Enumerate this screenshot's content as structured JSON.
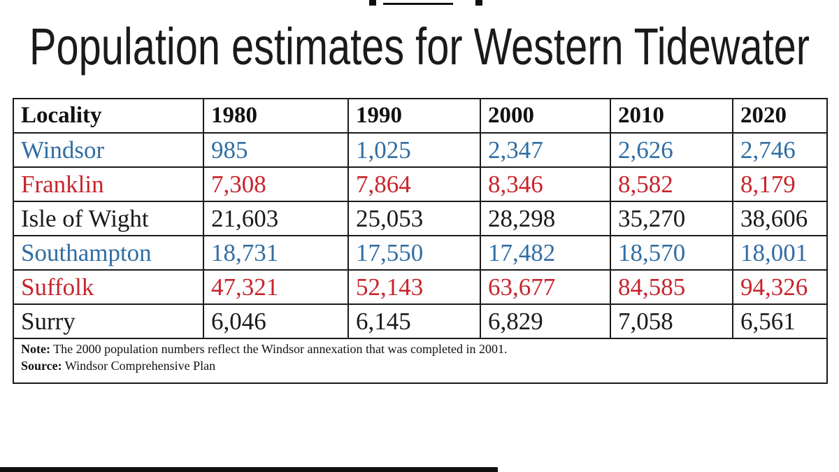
{
  "header": {
    "title": "Population estimates for Western Tidewater"
  },
  "table": {
    "columns": [
      "Locality",
      "1980",
      "1990",
      "2000",
      "2010",
      "2020"
    ],
    "rows": [
      {
        "color": "#2f6da3",
        "cells": [
          "Windsor",
          "985",
          "1,025",
          "2,347",
          "2,626",
          "2,746"
        ]
      },
      {
        "color": "#c8232c",
        "cells": [
          "Franklin",
          "7,308",
          "7,864",
          "8,346",
          "8,582",
          "8,179"
        ]
      },
      {
        "color": "#1a1a1a",
        "cells": [
          "Isle of Wight",
          "21,603",
          "25,053",
          "28,298",
          "35,270",
          "38,606"
        ]
      },
      {
        "color": "#2f6da3",
        "cells": [
          "Southampton",
          "18,731",
          "17,550",
          "17,482",
          "18,570",
          "18,001"
        ]
      },
      {
        "color": "#c8232c",
        "cells": [
          "Suffolk",
          "47,321",
          "52,143",
          "63,677",
          "84,585",
          "94,326"
        ]
      },
      {
        "color": "#1a1a1a",
        "cells": [
          "Surry",
          "6,046",
          "6,145",
          "6,829",
          "7,058",
          "6,561"
        ]
      }
    ],
    "note": {
      "label": "Note:",
      "text": "The 2000 population numbers reflect the Windsor annexation that was completed in 2001."
    },
    "source": {
      "label": "Source:",
      "text": "Windsor Comprehensive Plan"
    }
  }
}
